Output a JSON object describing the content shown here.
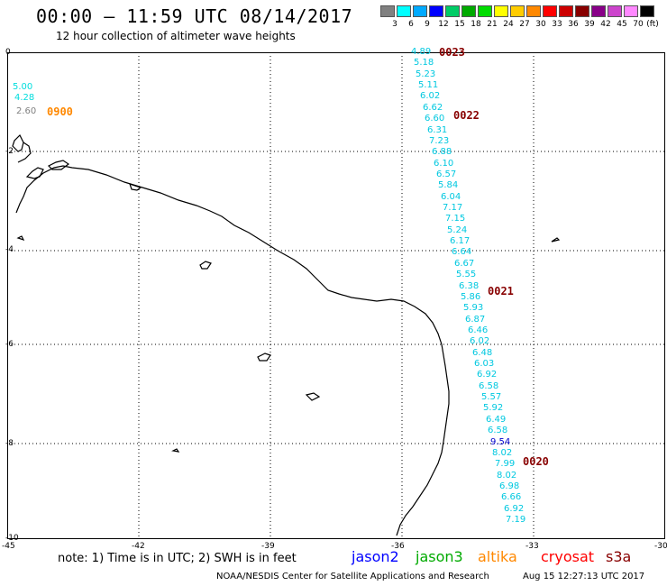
{
  "title": "00:00 – 11:59 UTC 08/14/2017",
  "subtitle": "12 hour collection of altimeter wave heights",
  "legend": {
    "unit": "(ft)",
    "items": [
      {
        "label": "3",
        "color": "#808080"
      },
      {
        "label": "6",
        "color": "#00ffff"
      },
      {
        "label": "9",
        "color": "#00aaff"
      },
      {
        "label": "12",
        "color": "#0000ff"
      },
      {
        "label": "15",
        "color": "#00cc66"
      },
      {
        "label": "18",
        "color": "#00aa00"
      },
      {
        "label": "21",
        "color": "#00dd00"
      },
      {
        "label": "24",
        "color": "#ffff00"
      },
      {
        "label": "27",
        "color": "#ffcc00"
      },
      {
        "label": "30",
        "color": "#ff8800"
      },
      {
        "label": "33",
        "color": "#ff0000"
      },
      {
        "label": "36",
        "color": "#cc0000"
      },
      {
        "label": "39",
        "color": "#880000"
      },
      {
        "label": "42",
        "color": "#880088"
      },
      {
        "label": "45",
        "color": "#cc44cc"
      },
      {
        "label": "70",
        "color": "#ff88ff"
      },
      {
        "label": "",
        "color": "#000000"
      }
    ]
  },
  "y_ticks": [
    "0",
    "-2",
    "-4",
    "-6",
    "-8",
    "-10"
  ],
  "x_ticks": [
    "-45",
    "-42",
    "-39",
    "-36",
    "-33",
    "-30"
  ],
  "time_labels": [
    {
      "text": "0900",
      "color": "#ff8800"
    },
    {
      "text": "0023",
      "color": "#880000"
    },
    {
      "text": "0022",
      "color": "#880000"
    },
    {
      "text": "0021",
      "color": "#880000"
    },
    {
      "text": "0020",
      "color": "#880000"
    }
  ],
  "track_left": [
    {
      "v": "5.00",
      "c": "#00dddd"
    },
    {
      "v": "4.28",
      "c": "#00dddd"
    },
    {
      "v": "2.60",
      "c": "#808080"
    }
  ],
  "track_main": [
    "4.89",
    "5.18",
    "5.23",
    "5.11",
    "6.02",
    "6.62",
    "6.60",
    "6.31",
    "7.23",
    "6.88",
    "6.10",
    "6.57",
    "5.84",
    "6.04",
    "7.17",
    "7.15",
    "5.24",
    "6.17",
    "6.64",
    "6.67",
    "5.55",
    "6.38",
    "5.86",
    "5.93",
    "6.87",
    "6.46",
    "6.02",
    "6.48",
    "6.03",
    "6.92",
    "6.58",
    "5.57",
    "5.92",
    "6.49",
    "6.58",
    "9.54",
    "8.02",
    "7.99",
    "8.02",
    "6.98",
    "6.66",
    "6.92",
    "7.19"
  ],
  "track_main_blue_index": 35,
  "note": "note:  1) Time is in UTC;  2) SWH is in feet",
  "satellites": [
    {
      "name": "jason2",
      "color": "#0000ff"
    },
    {
      "name": "jason3",
      "color": "#00aa00"
    },
    {
      "name": "altika",
      "color": "#ff8800"
    },
    {
      "name": "cryosat",
      "color": "#ff0000"
    },
    {
      "name": "s3a",
      "color": "#880000"
    }
  ],
  "credit": "NOAA/NESDIS Center for Satellite Applications and Research",
  "timestamp": "Aug 15 12:27:13 UTC 2017"
}
